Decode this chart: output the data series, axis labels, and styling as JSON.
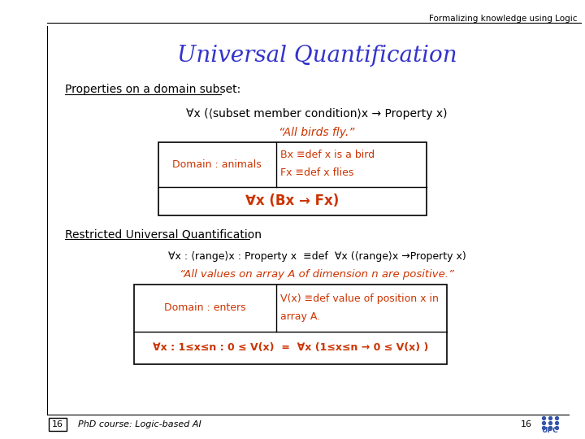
{
  "title": "Universal Quantification",
  "header_text": "Formalizing knowledge using Logic",
  "title_color": "#3333CC",
  "orange_color": "#CC3300",
  "black_color": "#000000",
  "slide_bg": "#FFFFFF",
  "section1_label": "Properties on a domain subset:",
  "formula1": "∀x (⟨subset member condition⟩x → Property x)",
  "quote1": "“All birds fly.”",
  "domain1_left": "Domain : animals",
  "domain1_right1": "Bx ≡def x is a bird",
  "domain1_right2": "Fx ≡def x flies",
  "formula1_box": "∀x (Bx → Fx)",
  "section2_label": "Restricted Universal Quantification",
  "formula2": "∀x : ⟨range⟩x : Property x  ≡def  ∀x (⟨range⟩x →Property x)",
  "quote2": "“All values on array A of dimension n are positive.”",
  "domain2_left": "Domain : enters",
  "domain2_right1": "V(x) ≡def value of position x in",
  "domain2_right2": "array A.",
  "formula2_box": "∀x : 1≤x≤n : 0 ≤ V(x)  =  ∀x (1≤x≤n → 0 ≤ V(x) )",
  "page_num": "16",
  "footer_course": "PhD course: Logic-based AI"
}
